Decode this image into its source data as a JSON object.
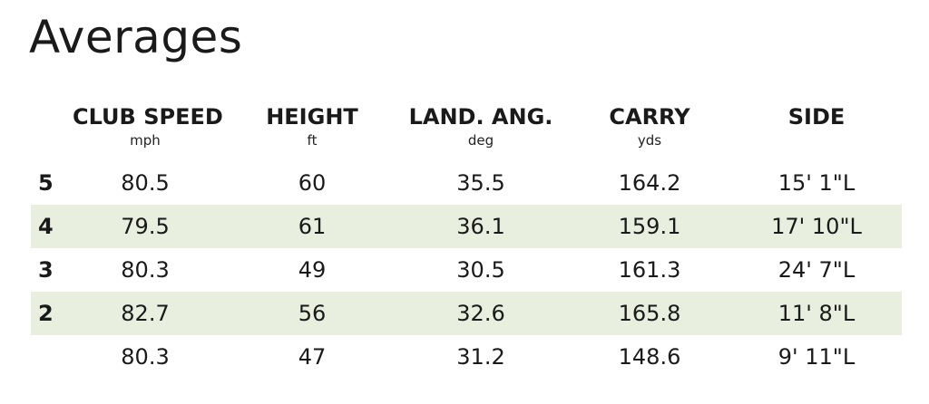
{
  "title": "Averages",
  "columns": [
    {
      "label": "CLUB SPEED",
      "unit": "mph"
    },
    {
      "label": "HEIGHT",
      "unit": "ft"
    },
    {
      "label": "LAND. ANG.",
      "unit": "deg"
    },
    {
      "label": "CARRY",
      "unit": "yds"
    },
    {
      "label": "SIDE",
      "unit": ""
    }
  ],
  "rows": [
    {
      "label": "5",
      "values": [
        "80.5",
        "60",
        "35.5",
        "164.2",
        "15' 1\"L"
      ]
    },
    {
      "label": "4",
      "values": [
        "79.5",
        "61",
        "36.1",
        "159.1",
        "17' 10\"L"
      ]
    },
    {
      "label": "3",
      "values": [
        "80.3",
        "49",
        "30.5",
        "161.3",
        "24' 7\"L"
      ]
    },
    {
      "label": "2",
      "values": [
        "82.7",
        "56",
        "32.6",
        "165.8",
        "11' 8\"L"
      ]
    },
    {
      "label": "",
      "values": [
        "80.3",
        "47",
        "31.2",
        "148.6",
        "9' 11\"L"
      ]
    }
  ],
  "colors": {
    "row_shade": "#e8efdf",
    "text": "#1a1a1a"
  }
}
